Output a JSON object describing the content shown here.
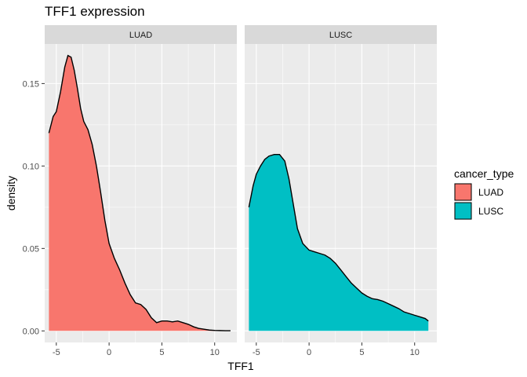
{
  "chart_data": {
    "type": "area",
    "title": "TFF1 expression",
    "xlabel": "TFF1",
    "ylabel": "density",
    "xlim": [
      -6.1,
      12.1
    ],
    "ylim": [
      -0.007,
      0.174
    ],
    "x_ticks": [
      -5,
      0,
      5,
      10
    ],
    "x_tick_labels": [
      "-5",
      "0",
      "5",
      "10"
    ],
    "y_ticks": [
      0.0,
      0.05,
      0.1,
      0.15
    ],
    "y_tick_labels": [
      "0.00",
      "0.05",
      "0.10",
      "0.15"
    ],
    "grid": true,
    "legend": {
      "title": "cancer_type",
      "position": "right",
      "entries": [
        "LUAD",
        "LUSC"
      ]
    },
    "colors": {
      "LUAD": "#F8766D",
      "LUSC": "#00BFC4",
      "panel_bg": "#EBEBEB",
      "grid": "#FFFFFF",
      "strip_bg": "#D9D9D9"
    },
    "facets": [
      {
        "label": "LUAD",
        "series": "LUAD",
        "x": [
          -5.7,
          -5.3,
          -5.0,
          -4.6,
          -4.2,
          -3.9,
          -3.6,
          -3.3,
          -3.0,
          -2.7,
          -2.4,
          -2.0,
          -1.6,
          -1.2,
          -0.8,
          -0.4,
          0.0,
          0.5,
          1.0,
          1.5,
          2.0,
          2.5,
          3.0,
          3.5,
          4.0,
          4.5,
          5.0,
          5.5,
          6.0,
          6.5,
          7.0,
          7.5,
          8.0,
          8.5,
          9.0,
          9.5,
          10.0,
          10.5,
          11.0,
          11.5
        ],
        "y": [
          0.12,
          0.13,
          0.133,
          0.145,
          0.16,
          0.167,
          0.166,
          0.158,
          0.147,
          0.135,
          0.127,
          0.122,
          0.113,
          0.1,
          0.084,
          0.067,
          0.053,
          0.044,
          0.037,
          0.029,
          0.022,
          0.017,
          0.016,
          0.013,
          0.008,
          0.005,
          0.006,
          0.006,
          0.0055,
          0.006,
          0.005,
          0.004,
          0.0025,
          0.0015,
          0.001,
          0.0005,
          0.0003,
          0.0002,
          0.0001,
          0.0001
        ]
      },
      {
        "label": "LUSC",
        "series": "LUSC",
        "x": [
          -5.7,
          -5.3,
          -5.0,
          -4.6,
          -4.2,
          -3.8,
          -3.3,
          -2.8,
          -2.3,
          -1.9,
          -1.5,
          -1.1,
          -0.6,
          0.0,
          0.5,
          1.0,
          1.5,
          2.0,
          2.5,
          3.0,
          3.5,
          4.0,
          4.5,
          5.0,
          5.5,
          6.0,
          6.5,
          7.0,
          7.5,
          8.0,
          8.5,
          9.0,
          9.5,
          10.0,
          10.5,
          11.0,
          11.3
        ],
        "y": [
          0.075,
          0.088,
          0.095,
          0.1,
          0.104,
          0.106,
          0.107,
          0.107,
          0.103,
          0.092,
          0.077,
          0.062,
          0.053,
          0.049,
          0.048,
          0.047,
          0.046,
          0.044,
          0.041,
          0.037,
          0.033,
          0.029,
          0.026,
          0.023,
          0.021,
          0.0195,
          0.019,
          0.018,
          0.0165,
          0.015,
          0.0135,
          0.0115,
          0.0105,
          0.0095,
          0.0085,
          0.0075,
          0.006
        ]
      }
    ]
  }
}
